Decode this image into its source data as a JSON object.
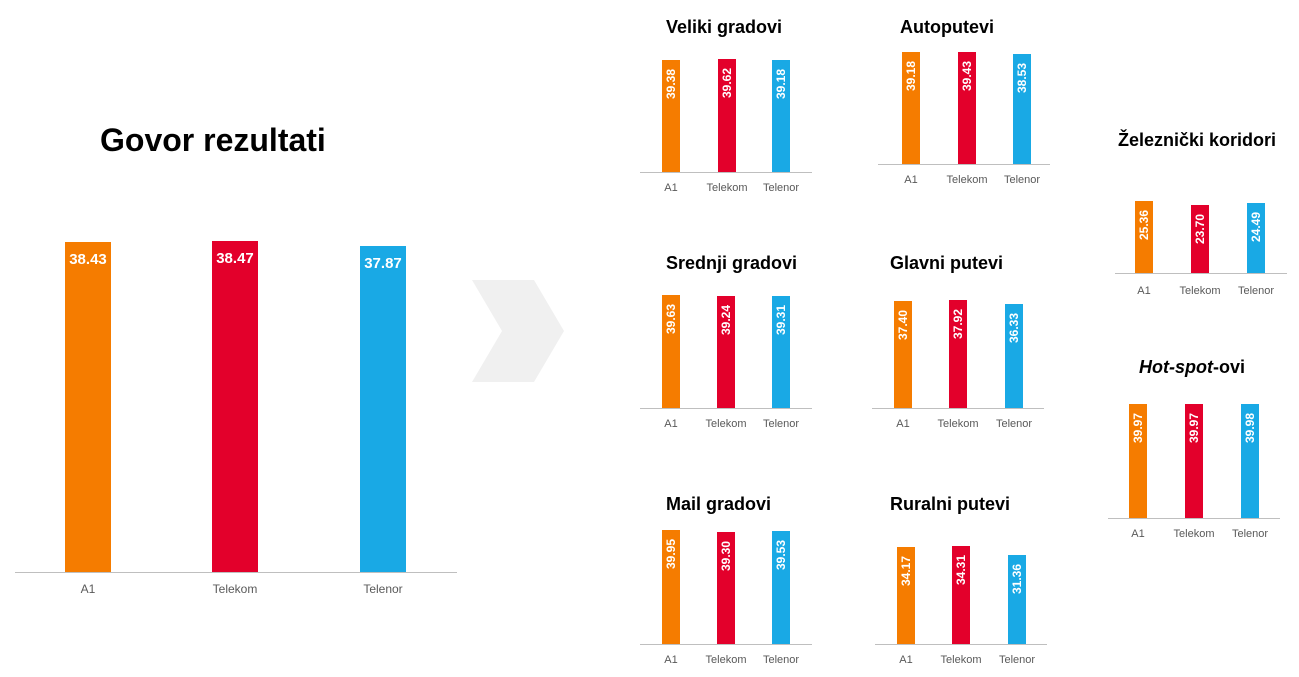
{
  "colors": {
    "A1": "#f57c00",
    "Telekom": "#e3002b",
    "Telenor": "#19a9e5"
  },
  "chart_data": [
    {
      "type": "bar",
      "title": "Govor rezultati",
      "categories": [
        "A1",
        "Telekom",
        "Telenor"
      ],
      "values": [
        38.43,
        38.47,
        37.87
      ],
      "labels": [
        "38.43",
        "38.47",
        "37.87"
      ],
      "ylim": [
        0,
        40
      ]
    },
    {
      "type": "bar",
      "title": "Veliki gradovi",
      "categories": [
        "A1",
        "Telekom",
        "Telenor"
      ],
      "values": [
        39.38,
        39.62,
        39.18
      ],
      "labels": [
        "39.38",
        "39.62",
        "39.18"
      ],
      "ylim": [
        0,
        40
      ]
    },
    {
      "type": "bar",
      "title": "Autoputevi",
      "categories": [
        "A1",
        "Telekom",
        "Telenor"
      ],
      "values": [
        39.18,
        39.43,
        38.53
      ],
      "labels": [
        "39.18",
        "39.43",
        "38.53"
      ],
      "ylim": [
        0,
        40
      ]
    },
    {
      "type": "bar",
      "title": "Železnički koridori",
      "categories": [
        "A1",
        "Telekom",
        "Telenor"
      ],
      "values": [
        25.36,
        23.7,
        24.49
      ],
      "labels": [
        "25.36",
        "23.70",
        "24.49"
      ],
      "ylim": [
        0,
        40
      ]
    },
    {
      "type": "bar",
      "title": "Srednji gradovi",
      "categories": [
        "A1",
        "Telekom",
        "Telenor"
      ],
      "values": [
        39.63,
        39.24,
        39.31
      ],
      "labels": [
        "39.63",
        "39.24",
        "39.31"
      ],
      "ylim": [
        0,
        40
      ]
    },
    {
      "type": "bar",
      "title": "Glavni putevi",
      "categories": [
        "A1",
        "Telekom",
        "Telenor"
      ],
      "values": [
        37.4,
        37.92,
        36.33
      ],
      "labels": [
        "37.40",
        "37.92",
        "36.33"
      ],
      "ylim": [
        0,
        40
      ]
    },
    {
      "type": "bar",
      "title": "Hot-spot-ovi",
      "categories": [
        "A1",
        "Telekom",
        "Telenor"
      ],
      "values": [
        39.97,
        39.97,
        39.98
      ],
      "labels": [
        "39.97",
        "39.97",
        "39.98"
      ],
      "ylim": [
        0,
        40
      ]
    },
    {
      "type": "bar",
      "title": "Mail gradovi",
      "categories": [
        "A1",
        "Telekom",
        "Telenor"
      ],
      "values": [
        39.95,
        39.3,
        39.53
      ],
      "labels": [
        "39.95",
        "39.30",
        "39.53"
      ],
      "ylim": [
        0,
        40
      ]
    },
    {
      "type": "bar",
      "title": "Ruralni putevi",
      "categories": [
        "A1",
        "Telekom",
        "Telenor"
      ],
      "values": [
        34.17,
        34.31,
        31.36
      ],
      "labels": [
        "34.17",
        "34.31",
        "31.36"
      ],
      "ylim": [
        0,
        40
      ]
    }
  ]
}
